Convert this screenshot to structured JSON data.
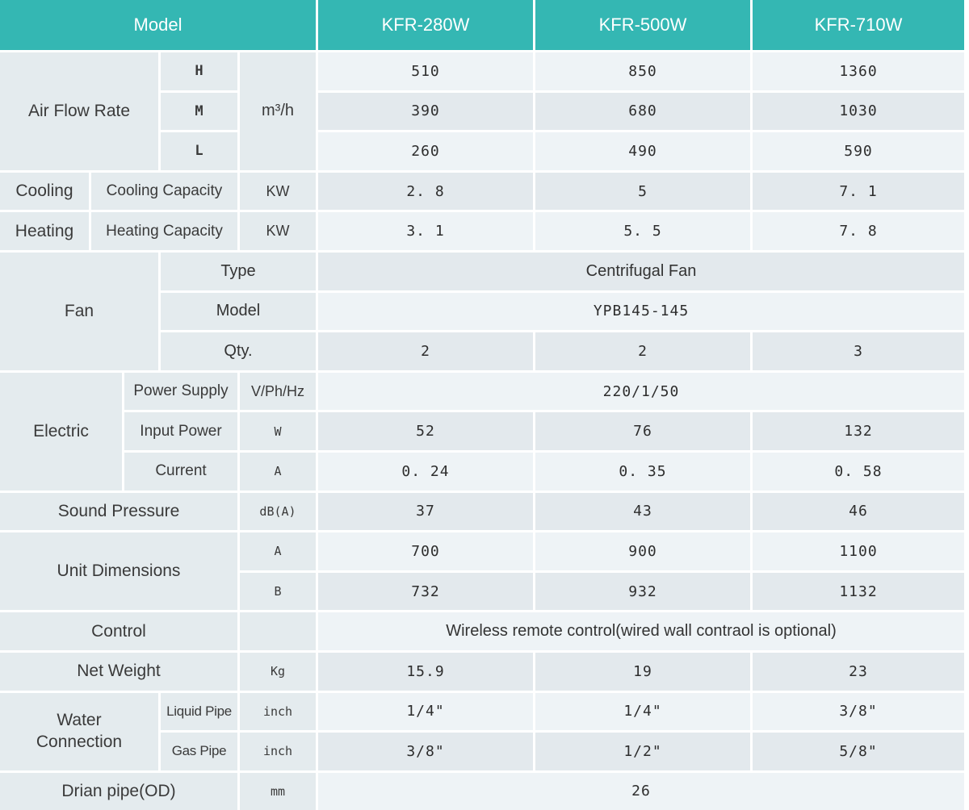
{
  "colors": {
    "header_bg": "#34b7b3",
    "header_text": "#ffffff",
    "row_light": "#eef3f6",
    "row_dark": "#e3e9ed",
    "label_bg": "#e4ebee",
    "text": "#3a3a3a"
  },
  "header": {
    "model_label": "Model",
    "models": [
      "KFR-280W",
      "KFR-500W",
      "KFR-710W"
    ]
  },
  "air_flow": {
    "label": "Air Flow Rate",
    "unit": "m³/h",
    "rows": [
      {
        "speed": "H",
        "values": [
          "510",
          "850",
          "1360"
        ]
      },
      {
        "speed": "M",
        "values": [
          "390",
          "680",
          "1030"
        ]
      },
      {
        "speed": "L",
        "values": [
          "260",
          "490",
          "590"
        ]
      }
    ]
  },
  "cooling": {
    "label": "Cooling",
    "sub": "Cooling Capacity",
    "unit": "KW",
    "values": [
      "2. 8",
      "5",
      "7. 1"
    ]
  },
  "heating": {
    "label": "Heating",
    "sub": "Heating Capacity",
    "unit": "KW",
    "values": [
      "3. 1",
      "5. 5",
      "7. 8"
    ]
  },
  "fan": {
    "label": "Fan",
    "rows": [
      {
        "name": "Type",
        "span": "Centrifugal Fan"
      },
      {
        "name": "Model",
        "span": "YPB145-145"
      },
      {
        "name": "Qty.",
        "values": [
          "2",
          "2",
          "3"
        ]
      }
    ]
  },
  "electric": {
    "label": "Electric",
    "rows": [
      {
        "name": "Power Supply",
        "unit": "V/Ph/Hz",
        "span": "220/1/50"
      },
      {
        "name": "Input Power",
        "unit": "W",
        "values": [
          "52",
          "76",
          "132"
        ]
      },
      {
        "name": "Current",
        "unit": "A",
        "values": [
          "0. 24",
          "0. 35",
          "0. 58"
        ]
      }
    ]
  },
  "sound_pressure": {
    "label": "Sound Pressure",
    "unit": "dB(A)",
    "values": [
      "37",
      "43",
      "46"
    ]
  },
  "unit_dimensions": {
    "label": "Unit Dimensions",
    "rows": [
      {
        "name": "A",
        "values": [
          "700",
          "900",
          "1100"
        ]
      },
      {
        "name": "B",
        "values": [
          "732",
          "932",
          "1132"
        ]
      }
    ]
  },
  "control": {
    "label": "Control",
    "span": "Wireless remote control(wired wall contraol is optional)"
  },
  "net_weight": {
    "label": "Net Weight",
    "unit": "Kg",
    "values": [
      "15.9",
      "19",
      "23"
    ]
  },
  "water_connection": {
    "label": "Water Connection",
    "rows": [
      {
        "name": "Liquid Pipe",
        "unit": "inch",
        "values": [
          "1/4\"",
          "1/4\"",
          "3/8\""
        ]
      },
      {
        "name": "Gas Pipe",
        "unit": "inch",
        "values": [
          "3/8\"",
          "1/2\"",
          "5/8\""
        ]
      }
    ]
  },
  "drain_pipe": {
    "label": "Drian pipe(OD)",
    "unit": "mm",
    "span": "26"
  }
}
